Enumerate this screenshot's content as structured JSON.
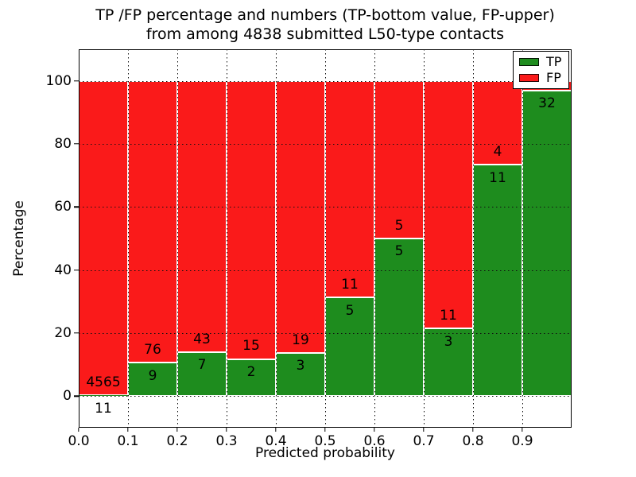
{
  "chart_data": {
    "type": "bar",
    "stacked": true,
    "title_line1": "TP /FP percentage and numbers (TP-bottom value, FP-upper)",
    "title_line2": "from among 4838 submitted L50-type contacts",
    "xlabel": "Predicted probability",
    "ylabel": "Percentage",
    "xlim": [
      0.0,
      1.0
    ],
    "ylim": [
      -10,
      110
    ],
    "grid": "dotted, on top of bars",
    "xticks": [
      "0.0",
      "0.1",
      "0.2",
      "0.3",
      "0.4",
      "0.5",
      "0.6",
      "0.7",
      "0.8",
      "0.9"
    ],
    "yticks": [
      0,
      20,
      40,
      60,
      80,
      100
    ],
    "label_offset_pct": 4.1,
    "legend": {
      "position": "upper right",
      "entries": [
        {
          "label": "TP",
          "color": "#1e8c1e"
        },
        {
          "label": "FP",
          "color": "#fa1a1a"
        }
      ]
    },
    "bins": [
      {
        "x0": 0.0,
        "x1": 0.1,
        "tp_label": "11",
        "fp_label": "4565",
        "tp_pct": 0.24
      },
      {
        "x0": 0.1,
        "x1": 0.2,
        "tp_label": "9",
        "fp_label": "76",
        "tp_pct": 10.59
      },
      {
        "x0": 0.2,
        "x1": 0.3,
        "tp_label": "7",
        "fp_label": "43",
        "tp_pct": 14.0
      },
      {
        "x0": 0.3,
        "x1": 0.4,
        "tp_label": "2",
        "fp_label": "15",
        "tp_pct": 11.76
      },
      {
        "x0": 0.4,
        "x1": 0.5,
        "tp_label": "3",
        "fp_label": "19",
        "tp_pct": 13.64
      },
      {
        "x0": 0.5,
        "x1": 0.6,
        "tp_label": "5",
        "fp_label": "11",
        "tp_pct": 31.25
      },
      {
        "x0": 0.6,
        "x1": 0.7,
        "tp_label": "5",
        "fp_label": "5",
        "tp_pct": 50.0
      },
      {
        "x0": 0.7,
        "x1": 0.8,
        "tp_label": "3",
        "fp_label": "11",
        "tp_pct": 21.43
      },
      {
        "x0": 0.8,
        "x1": 0.9,
        "tp_label": "11",
        "fp_label": "4",
        "tp_pct": 73.33
      },
      {
        "x0": 0.9,
        "x1": 1.0,
        "tp_label": "32",
        "fp_label": "",
        "tp_pct": 96.97
      }
    ],
    "colors": {
      "tp": "#1e8c1e",
      "fp": "#fa1a1a",
      "bar_edge": "#ffffff",
      "grid": "#111111",
      "spine": "#000000",
      "background": "#ffffff"
    }
  }
}
